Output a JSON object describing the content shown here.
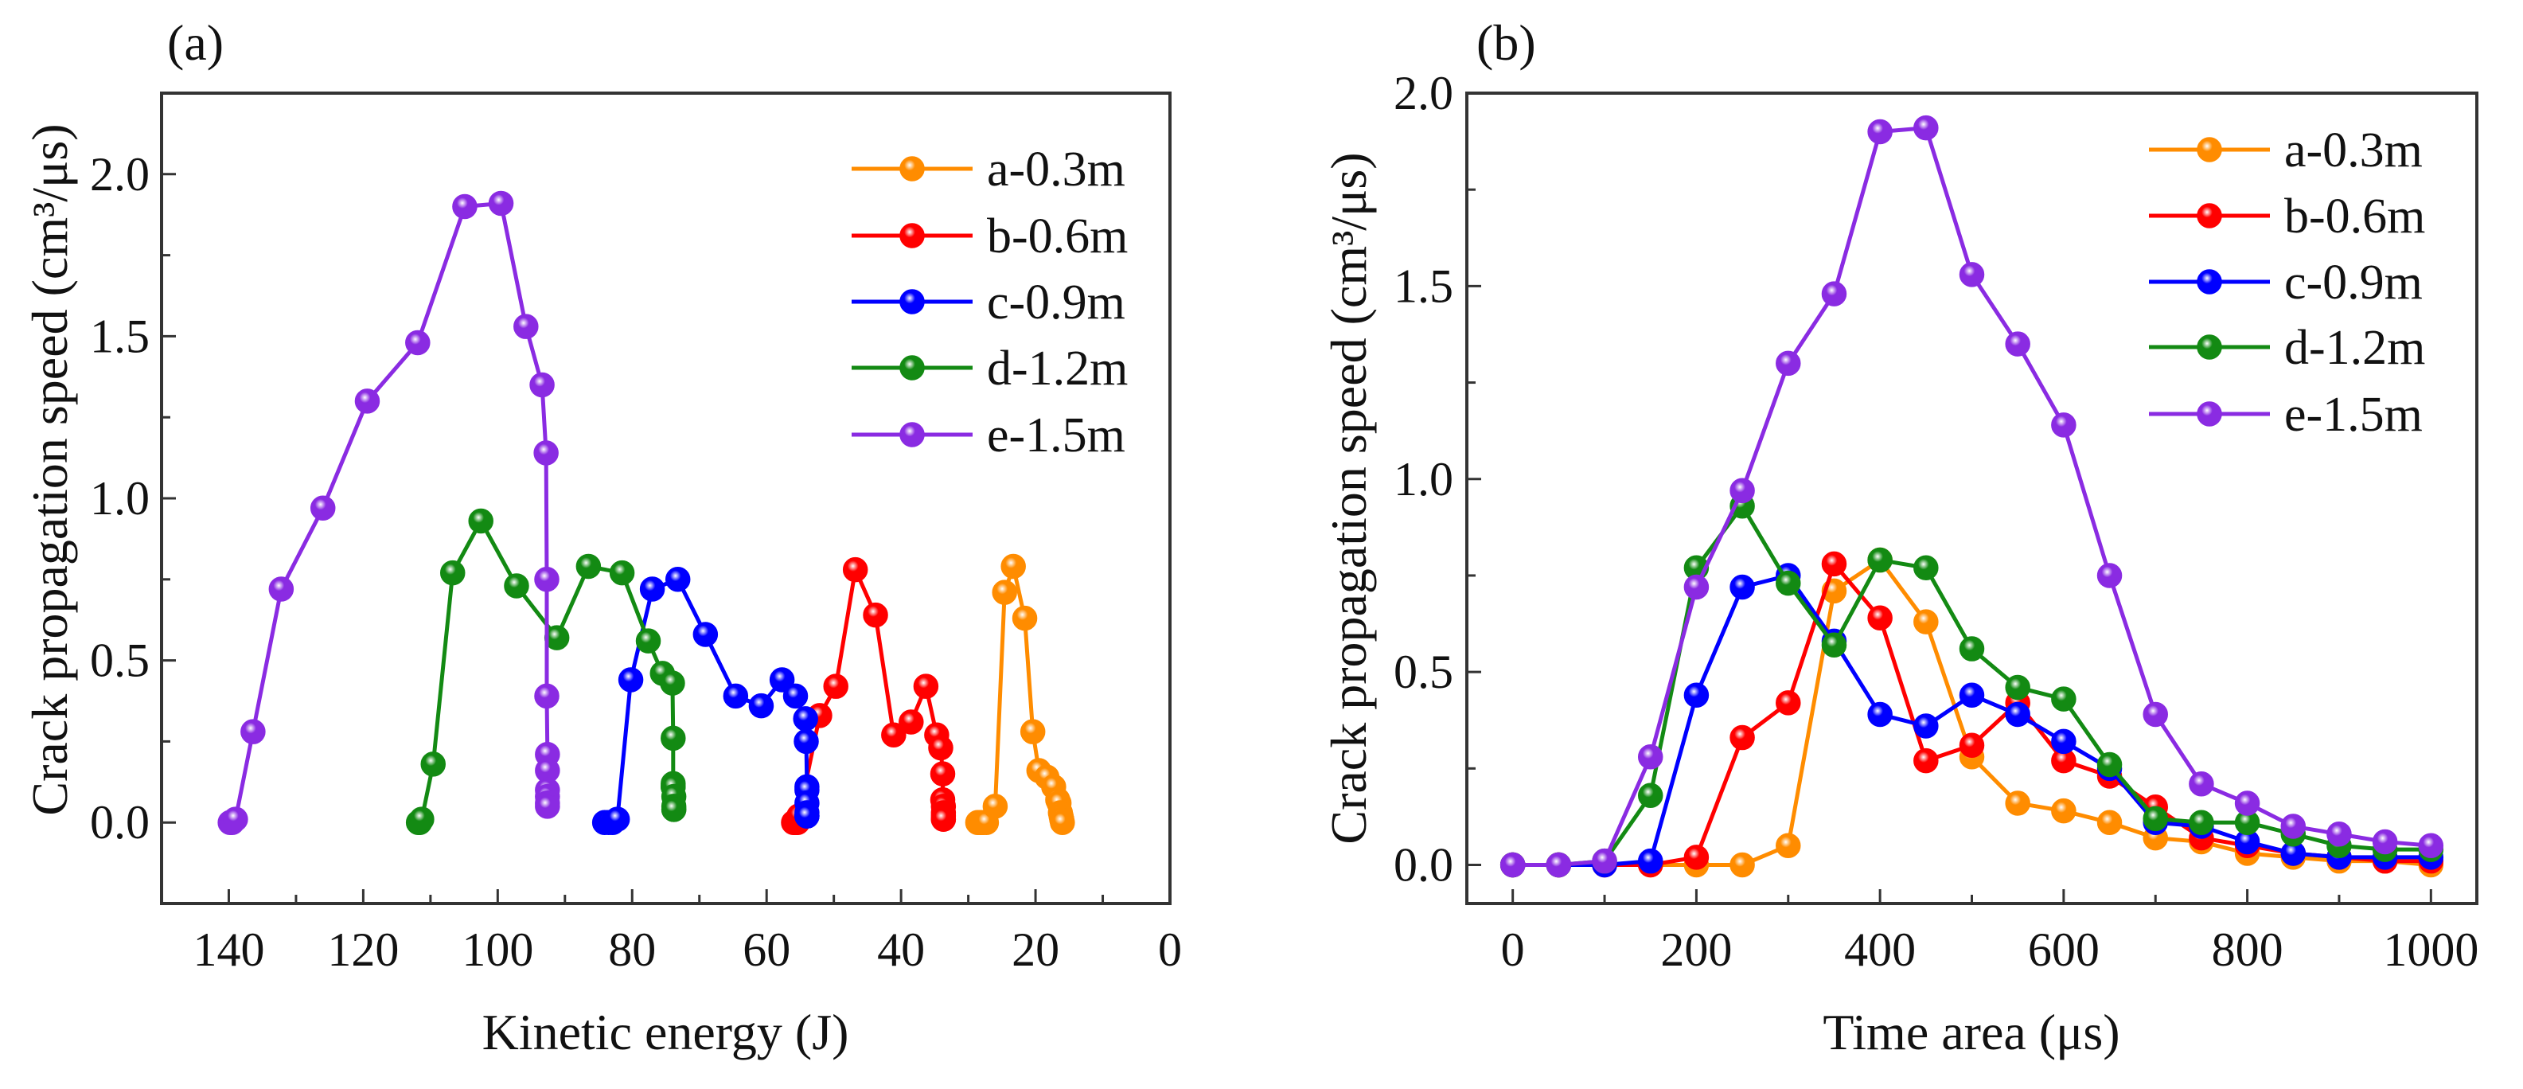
{
  "colors": {
    "a-0.3m": "#ff8c00",
    "b-0.6m": "#ff0000",
    "c-0.9m": "#0000ff",
    "d-1.2m": "#138a13",
    "e-1.5m": "#8a2be2",
    "axis": "#333333"
  },
  "chart_data": [
    {
      "panel_label": "(a)",
      "type": "line",
      "xlabel": "Kinetic energy (J)",
      "ylabel": "Crack propagation speed (cm³/μs)",
      "xlim": [
        150,
        0
      ],
      "ylim": [
        -0.25,
        2.25
      ],
      "xticks": [
        140,
        120,
        100,
        80,
        60,
        40,
        20,
        0
      ],
      "xtick_labels": [
        "140",
        "120",
        "100",
        "80",
        "60",
        "40",
        "20",
        "0"
      ],
      "xminor": [
        130,
        110,
        90,
        70,
        50,
        30,
        10
      ],
      "yticks": [
        0,
        0.5,
        1.0,
        1.5,
        2.0
      ],
      "ytick_labels": [
        "0.0",
        "0.5",
        "1.0",
        "1.5",
        "2.0"
      ],
      "yminor": [
        0.25,
        0.75,
        1.25,
        1.75
      ],
      "grid": false,
      "legend": "top-right",
      "series": [
        {
          "name": "a-0.3m",
          "x": [
            28.6,
            28.4,
            28.2,
            28,
            27.8,
            27.3,
            26,
            24.6,
            23.3,
            21.6,
            20.4,
            19.5,
            18.3,
            17.3,
            16.7,
            16.5,
            16.3,
            16.2,
            16.1,
            16.1,
            16
          ],
          "y": [
            0,
            0,
            0,
            0,
            0,
            0,
            0.05,
            0.71,
            0.79,
            0.63,
            0.28,
            0.16,
            0.14,
            0.11,
            0.07,
            0.06,
            0.03,
            0.02,
            0.01,
            0.01,
            0.0
          ]
        },
        {
          "name": "b-0.6m",
          "x": [
            56,
            55.8,
            55.6,
            55.4,
            55.2,
            52.1,
            49.7,
            46.8,
            43.8,
            41.1,
            38.5,
            36.3,
            34.7,
            34.1,
            33.8,
            33.8,
            33.7,
            33.7,
            33.7,
            33.7,
            33.7
          ],
          "y": [
            0,
            0,
            0,
            0,
            0.02,
            0.33,
            0.42,
            0.78,
            0.64,
            0.27,
            0.31,
            0.42,
            0.27,
            0.23,
            0.15,
            0.07,
            0.05,
            0.03,
            0.02,
            0.01,
            0.01
          ]
        },
        {
          "name": "c-0.9m",
          "x": [
            84.1,
            83.5,
            82.9,
            82.2,
            80.2,
            77,
            73.2,
            69.1,
            64.6,
            60.8,
            57.7,
            55.7,
            54.2,
            54.1,
            54,
            54,
            54,
            54,
            54,
            54,
            54
          ],
          "y": [
            0,
            0,
            0,
            0.01,
            0.44,
            0.72,
            0.75,
            0.58,
            0.39,
            0.36,
            0.44,
            0.39,
            0.32,
            0.25,
            0.11,
            0.1,
            0.06,
            0.03,
            0.02,
            0.02,
            0.02
          ]
        },
        {
          "name": "d-1.2m",
          "x": [
            111.8,
            111.6,
            111.3,
            109.6,
            106.7,
            102.5,
            97.2,
            91.2,
            86.5,
            81.5,
            77.6,
            75.5,
            74,
            73.9,
            73.9,
            73.9,
            73.9,
            73.8,
            73.8,
            73.8,
            73.8
          ],
          "y": [
            0,
            0,
            0.01,
            0.18,
            0.77,
            0.93,
            0.73,
            0.57,
            0.79,
            0.77,
            0.56,
            0.46,
            0.43,
            0.26,
            0.12,
            0.11,
            0.11,
            0.08,
            0.05,
            0.04,
            0.04
          ]
        },
        {
          "name": "e-1.5m",
          "x": [
            139.8,
            139.5,
            139,
            136.4,
            132.2,
            126,
            119.4,
            111.9,
            104.9,
            99.5,
            95.8,
            93.4,
            92.8,
            92.7,
            92.7,
            92.6,
            92.6,
            92.6,
            92.6,
            92.6,
            92.6
          ],
          "y": [
            0,
            0,
            0.01,
            0.28,
            0.72,
            0.97,
            1.3,
            1.48,
            1.9,
            1.91,
            1.53,
            1.35,
            1.14,
            0.75,
            0.39,
            0.21,
            0.16,
            0.1,
            0.08,
            0.06,
            0.05
          ]
        }
      ]
    },
    {
      "panel_label": "(b)",
      "type": "line",
      "xlabel": "Time area (μs)",
      "ylabel": "Crack propagation speed (cm³/μs)",
      "xlim": [
        -50,
        1050
      ],
      "ylim": [
        -0.1,
        2.0
      ],
      "xticks": [
        0,
        200,
        400,
        600,
        800,
        1000
      ],
      "xtick_labels": [
        "0",
        "200",
        "400",
        "600",
        "800",
        "1000"
      ],
      "xminor": [
        100,
        300,
        500,
        700,
        900
      ],
      "yticks": [
        0,
        0.5,
        1.0,
        1.5,
        2.0
      ],
      "ytick_labels": [
        "0.0",
        "0.5",
        "1.0",
        "1.5",
        "2.0"
      ],
      "yminor": [
        0.25,
        0.75,
        1.25,
        1.75
      ],
      "grid": false,
      "legend": "top-right",
      "series": [
        {
          "name": "a-0.3m",
          "x": [
            0,
            50,
            100,
            150,
            200,
            250,
            300,
            350,
            400,
            450,
            500,
            550,
            600,
            650,
            700,
            750,
            800,
            850,
            900,
            950,
            1000
          ],
          "y": [
            0,
            0,
            0,
            0,
            0,
            0,
            0.05,
            0.71,
            0.79,
            0.63,
            0.28,
            0.16,
            0.14,
            0.11,
            0.07,
            0.06,
            0.03,
            0.02,
            0.01,
            0.01,
            0.0
          ]
        },
        {
          "name": "b-0.6m",
          "x": [
            0,
            50,
            100,
            150,
            200,
            250,
            300,
            350,
            400,
            450,
            500,
            550,
            600,
            650,
            700,
            750,
            800,
            850,
            900,
            950,
            1000
          ],
          "y": [
            0,
            0,
            0,
            0,
            0.02,
            0.33,
            0.42,
            0.78,
            0.64,
            0.27,
            0.31,
            0.42,
            0.27,
            0.23,
            0.15,
            0.07,
            0.05,
            0.03,
            0.02,
            0.01,
            0.01
          ]
        },
        {
          "name": "c-0.9m",
          "x": [
            0,
            50,
            100,
            150,
            200,
            250,
            300,
            350,
            400,
            450,
            500,
            550,
            600,
            650,
            700,
            750,
            800,
            850,
            900,
            950,
            1000
          ],
          "y": [
            0,
            0,
            0,
            0.01,
            0.44,
            0.72,
            0.75,
            0.58,
            0.39,
            0.36,
            0.44,
            0.39,
            0.32,
            0.25,
            0.11,
            0.1,
            0.06,
            0.03,
            0.02,
            0.02,
            0.02
          ]
        },
        {
          "name": "d-1.2m",
          "x": [
            0,
            50,
            100,
            150,
            200,
            250,
            300,
            350,
            400,
            450,
            500,
            550,
            600,
            650,
            700,
            750,
            800,
            850,
            900,
            950,
            1000
          ],
          "y": [
            0,
            0,
            0.01,
            0.18,
            0.77,
            0.93,
            0.73,
            0.57,
            0.79,
            0.77,
            0.56,
            0.46,
            0.43,
            0.26,
            0.12,
            0.11,
            0.11,
            0.08,
            0.05,
            0.04,
            0.04
          ]
        },
        {
          "name": "e-1.5m",
          "x": [
            0,
            50,
            100,
            150,
            200,
            250,
            300,
            350,
            400,
            450,
            500,
            550,
            600,
            650,
            700,
            750,
            800,
            850,
            900,
            950,
            1000
          ],
          "y": [
            0,
            0,
            0.01,
            0.28,
            0.72,
            0.97,
            1.3,
            1.48,
            1.9,
            1.91,
            1.53,
            1.35,
            1.14,
            0.75,
            0.39,
            0.21,
            0.16,
            0.1,
            0.08,
            0.06,
            0.05
          ]
        }
      ]
    }
  ]
}
